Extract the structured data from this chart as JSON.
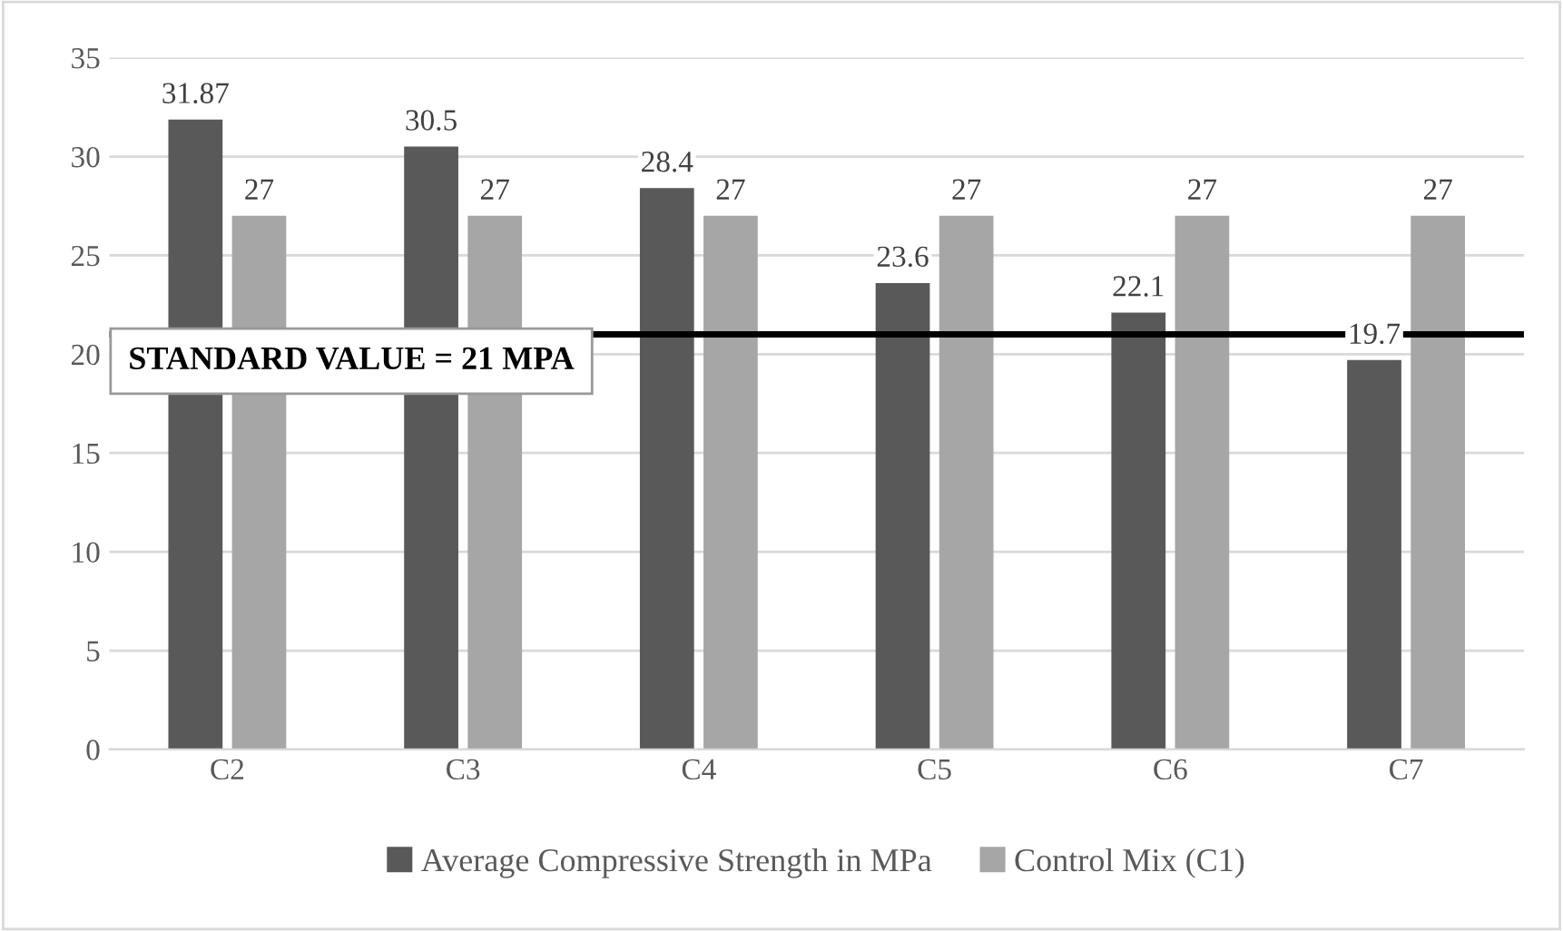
{
  "chart_data": {
    "type": "bar",
    "categories": [
      "C2",
      "C3",
      "C4",
      "C5",
      "C6",
      "C7"
    ],
    "series": [
      {
        "name": "Average Compressive Strength in MPa",
        "color": "#595959",
        "values": [
          31.87,
          30.5,
          28.4,
          23.6,
          22.1,
          19.7
        ]
      },
      {
        "name": "Control Mix (C1)",
        "color": "#a6a6a6",
        "values": [
          27,
          27,
          27,
          27,
          27,
          27
        ]
      }
    ],
    "ylim": [
      0,
      35
    ],
    "yticks": [
      0,
      5,
      10,
      15,
      20,
      25,
      30,
      35
    ],
    "grid": "y",
    "legend": "bottom",
    "data_labels": true,
    "ref_lines": [
      {
        "axis": "y",
        "value": 21,
        "label": "STANDARD VALUE = 21 MPA",
        "color": "#000000"
      }
    ]
  }
}
